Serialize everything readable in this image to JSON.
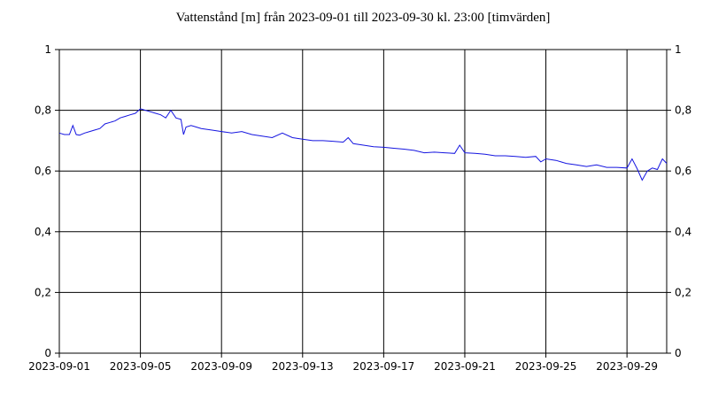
{
  "chart_data": {
    "type": "line",
    "title": "Vattenstånd [m] från 2023-09-01 till 2023-09-30 kl. 23:00 [timvärden]",
    "xlabel": "",
    "ylabel": "",
    "x_range": [
      "2023-09-01",
      "2023-09-30 23:00"
    ],
    "x_ticks": [
      "2023-09-01",
      "2023-09-05",
      "2023-09-09",
      "2023-09-13",
      "2023-09-17",
      "2023-09-21",
      "2023-09-25",
      "2023-09-29"
    ],
    "ylim": [
      0,
      1
    ],
    "y_ticks": [
      "0",
      "0,2",
      "0,4",
      "0,6",
      "0,8",
      "1"
    ],
    "grid": true,
    "legend": "none",
    "color": "#1515e0",
    "series": [
      {
        "x": [
          "2023-09-01 00:00",
          "2023-09-01 06:00",
          "2023-09-01 12:00",
          "2023-09-01 16:00",
          "2023-09-01 20:00",
          "2023-09-02 00:00",
          "2023-09-02 06:00",
          "2023-09-02 12:00",
          "2023-09-02 18:00",
          "2023-09-03 00:00",
          "2023-09-03 06:00",
          "2023-09-03 12:00",
          "2023-09-03 18:00",
          "2023-09-04 00:00",
          "2023-09-04 06:00",
          "2023-09-04 12:00",
          "2023-09-04 18:00",
          "2023-09-05 00:00",
          "2023-09-05 06:00",
          "2023-09-05 12:00",
          "2023-09-05 18:00",
          "2023-09-06 00:00",
          "2023-09-06 03:00",
          "2023-09-06 06:00",
          "2023-09-06 12:00",
          "2023-09-06 18:00",
          "2023-09-07 00:00",
          "2023-09-07 03:00",
          "2023-09-07 06:00",
          "2023-09-07 12:00",
          "2023-09-07 18:00",
          "2023-09-08 00:00",
          "2023-09-08 12:00",
          "2023-09-09 00:00",
          "2023-09-09 12:00",
          "2023-09-10 00:00",
          "2023-09-10 12:00",
          "2023-09-11 00:00",
          "2023-09-11 12:00",
          "2023-09-12 00:00",
          "2023-09-12 12:00",
          "2023-09-13 00:00",
          "2023-09-13 12:00",
          "2023-09-14 00:00",
          "2023-09-14 12:00",
          "2023-09-15 00:00",
          "2023-09-15 06:00",
          "2023-09-15 12:00",
          "2023-09-16 00:00",
          "2023-09-16 12:00",
          "2023-09-17 00:00",
          "2023-09-17 12:00",
          "2023-09-18 00:00",
          "2023-09-18 12:00",
          "2023-09-19 00:00",
          "2023-09-19 12:00",
          "2023-09-20 00:00",
          "2023-09-20 12:00",
          "2023-09-20 18:00",
          "2023-09-21 00:00",
          "2023-09-21 12:00",
          "2023-09-22 00:00",
          "2023-09-22 12:00",
          "2023-09-23 00:00",
          "2023-09-23 12:00",
          "2023-09-24 00:00",
          "2023-09-24 12:00",
          "2023-09-24 18:00",
          "2023-09-25 00:00",
          "2023-09-25 12:00",
          "2023-09-26 00:00",
          "2023-09-26 12:00",
          "2023-09-27 00:00",
          "2023-09-27 12:00",
          "2023-09-28 00:00",
          "2023-09-28 12:00",
          "2023-09-29 00:00",
          "2023-09-29 06:00",
          "2023-09-29 12:00",
          "2023-09-29 18:00",
          "2023-09-30 00:00",
          "2023-09-30 06:00",
          "2023-09-30 12:00",
          "2023-09-30 18:00",
          "2023-09-30 23:00"
        ],
        "values": [
          0.725,
          0.72,
          0.72,
          0.75,
          0.72,
          0.718,
          0.725,
          0.73,
          0.735,
          0.74,
          0.755,
          0.76,
          0.765,
          0.775,
          0.78,
          0.785,
          0.79,
          0.805,
          0.8,
          0.795,
          0.79,
          0.785,
          0.78,
          0.775,
          0.8,
          0.775,
          0.77,
          0.72,
          0.745,
          0.75,
          0.745,
          0.74,
          0.735,
          0.73,
          0.725,
          0.73,
          0.72,
          0.715,
          0.71,
          0.725,
          0.71,
          0.705,
          0.7,
          0.7,
          0.698,
          0.695,
          0.71,
          0.69,
          0.685,
          0.68,
          0.678,
          0.675,
          0.672,
          0.668,
          0.66,
          0.662,
          0.66,
          0.658,
          0.685,
          0.66,
          0.658,
          0.655,
          0.65,
          0.65,
          0.648,
          0.645,
          0.648,
          0.63,
          0.64,
          0.635,
          0.625,
          0.62,
          0.615,
          0.62,
          0.612,
          0.612,
          0.61,
          0.64,
          0.608,
          0.57,
          0.6,
          0.61,
          0.605,
          0.64,
          0.625
        ]
      }
    ]
  }
}
